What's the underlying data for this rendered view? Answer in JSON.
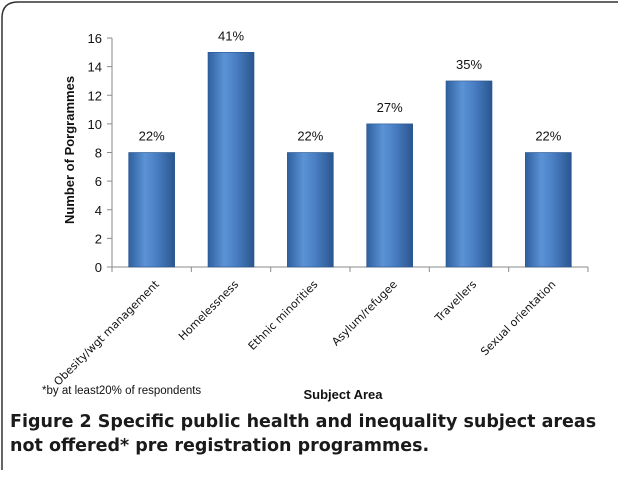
{
  "chart_data": {
    "type": "bar",
    "categories": [
      "Obesity/wgt management",
      "Homelessness",
      "Ethnic minorities",
      "Asylum/refugee",
      "Travellers",
      "Sexual orientation"
    ],
    "values": [
      8,
      15,
      8,
      10,
      13,
      8
    ],
    "data_labels": [
      "22%",
      "41%",
      "22%",
      "27%",
      "35%",
      "22%"
    ],
    "xlabel": "Subject Area",
    "ylabel": "Number of Porgrammes",
    "ylim": [
      0,
      16
    ],
    "yticks": [
      "0",
      "2",
      "4",
      "6",
      "8",
      "10",
      "12",
      "14",
      "16"
    ],
    "grid": false,
    "bar_color": "#4a7fc4"
  },
  "footnote": "*by at least20% of respondents",
  "caption": {
    "label": "Figure 2",
    "text": " Specific public health and inequality subject areas not offered* pre registration programmes."
  }
}
